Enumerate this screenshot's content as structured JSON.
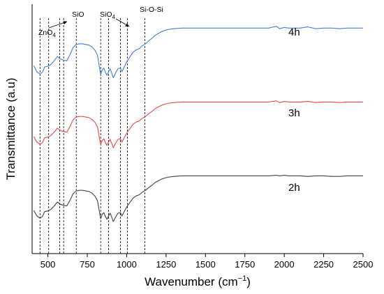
{
  "chart_data": {
    "type": "line",
    "xlabel": "Wavenumber (cm",
    "xlabel_sup": "−1",
    "xlabel_close": ")",
    "ylabel": "Transmittance (a.u)",
    "xlim": [
      400,
      2500
    ],
    "ylim": [
      0,
      1
    ],
    "x_ticks": [
      500,
      750,
      1000,
      1250,
      1500,
      1750,
      2000,
      2250,
      2500
    ],
    "y_ticks_shown": false,
    "grid": false,
    "series": [
      {
        "name": "2h",
        "color": "#404040",
        "x": [
          410,
          430,
          450,
          465,
          480,
          500,
          520,
          540,
          560,
          580,
          600,
          620,
          640,
          660,
          680,
          700,
          720,
          740,
          760,
          780,
          800,
          815,
          825,
          835,
          845,
          855,
          865,
          875,
          885,
          895,
          905,
          915,
          930,
          945,
          960,
          970,
          985,
          1000,
          1020,
          1040,
          1060,
          1080,
          1100,
          1120,
          1140,
          1160,
          1180,
          1200,
          1220,
          1240,
          1270,
          1300,
          1350,
          1400,
          1500,
          1600,
          1700,
          1800,
          1900,
          1950,
          1970,
          2000,
          2030,
          2100,
          2150,
          2200,
          2250,
          2300,
          2350,
          2400,
          2450,
          2500
        ],
        "y": [
          0.25,
          0.15,
          0.11,
          0.14,
          0.23,
          0.24,
          0.27,
          0.33,
          0.4,
          0.36,
          0.34,
          0.33,
          0.43,
          0.55,
          0.6,
          0.61,
          0.61,
          0.6,
          0.59,
          0.56,
          0.5,
          0.42,
          0.26,
          0.1,
          0.18,
          0.21,
          0.14,
          0.09,
          0.15,
          0.2,
          0.13,
          0.05,
          0.13,
          0.2,
          0.21,
          0.15,
          0.23,
          0.31,
          0.39,
          0.47,
          0.51,
          0.53,
          0.58,
          0.61,
          0.66,
          0.7,
          0.75,
          0.78,
          0.81,
          0.83,
          0.85,
          0.86,
          0.87,
          0.87,
          0.87,
          0.87,
          0.87,
          0.87,
          0.87,
          0.88,
          0.87,
          0.88,
          0.87,
          0.87,
          0.86,
          0.87,
          0.87,
          0.86,
          0.86,
          0.87,
          0.87,
          0.87
        ]
      },
      {
        "name": "3h",
        "color": "#e8474a",
        "x": [
          410,
          430,
          450,
          465,
          480,
          500,
          520,
          540,
          560,
          580,
          600,
          620,
          640,
          660,
          680,
          700,
          720,
          740,
          760,
          780,
          800,
          815,
          825,
          835,
          845,
          855,
          865,
          875,
          885,
          895,
          905,
          915,
          930,
          945,
          960,
          970,
          985,
          1000,
          1020,
          1040,
          1060,
          1080,
          1100,
          1120,
          1140,
          1160,
          1180,
          1200,
          1220,
          1240,
          1270,
          1300,
          1350,
          1400,
          1500,
          1600,
          1700,
          1800,
          1900,
          1950,
          1970,
          2000,
          2030,
          2100,
          2150,
          2200,
          2250,
          2300,
          2350,
          2400,
          2450,
          2500
        ],
        "y": [
          0.25,
          0.15,
          0.11,
          0.14,
          0.23,
          0.24,
          0.27,
          0.33,
          0.4,
          0.36,
          0.34,
          0.33,
          0.43,
          0.55,
          0.6,
          0.61,
          0.61,
          0.6,
          0.59,
          0.56,
          0.5,
          0.42,
          0.26,
          0.1,
          0.18,
          0.21,
          0.14,
          0.09,
          0.15,
          0.2,
          0.13,
          0.05,
          0.13,
          0.2,
          0.21,
          0.15,
          0.23,
          0.31,
          0.39,
          0.47,
          0.51,
          0.53,
          0.58,
          0.61,
          0.66,
          0.7,
          0.75,
          0.78,
          0.81,
          0.83,
          0.85,
          0.86,
          0.87,
          0.87,
          0.87,
          0.87,
          0.87,
          0.87,
          0.87,
          0.89,
          0.86,
          0.88,
          0.87,
          0.87,
          0.88,
          0.86,
          0.87,
          0.87,
          0.86,
          0.87,
          0.87,
          0.87
        ]
      },
      {
        "name": "4h",
        "color": "#3f80d8",
        "x": [
          410,
          430,
          450,
          465,
          480,
          500,
          520,
          540,
          560,
          580,
          600,
          620,
          640,
          660,
          680,
          700,
          720,
          740,
          760,
          780,
          800,
          815,
          825,
          835,
          845,
          855,
          865,
          875,
          885,
          895,
          905,
          915,
          930,
          945,
          960,
          970,
          985,
          1000,
          1020,
          1040,
          1060,
          1080,
          1100,
          1120,
          1140,
          1160,
          1180,
          1200,
          1220,
          1240,
          1270,
          1300,
          1350,
          1400,
          1500,
          1600,
          1700,
          1800,
          1900,
          1950,
          1970,
          2000,
          2030,
          2100,
          2150,
          2200,
          2250,
          2300,
          2350,
          2400,
          2450,
          2500
        ],
        "y": [
          0.25,
          0.15,
          0.11,
          0.14,
          0.23,
          0.24,
          0.27,
          0.33,
          0.4,
          0.36,
          0.34,
          0.33,
          0.43,
          0.55,
          0.6,
          0.61,
          0.61,
          0.6,
          0.59,
          0.56,
          0.5,
          0.42,
          0.26,
          0.1,
          0.18,
          0.21,
          0.14,
          0.09,
          0.15,
          0.2,
          0.13,
          0.05,
          0.13,
          0.2,
          0.21,
          0.15,
          0.23,
          0.31,
          0.39,
          0.47,
          0.51,
          0.53,
          0.58,
          0.61,
          0.66,
          0.7,
          0.75,
          0.78,
          0.81,
          0.83,
          0.85,
          0.86,
          0.87,
          0.87,
          0.87,
          0.87,
          0.87,
          0.87,
          0.87,
          0.9,
          0.86,
          0.88,
          0.87,
          0.87,
          0.89,
          0.86,
          0.87,
          0.87,
          0.86,
          0.87,
          0.87,
          0.87
        ]
      }
    ],
    "reference_lines_x": [
      450,
      505,
      575,
      600,
      680,
      835,
      885,
      960,
      1005,
      1115
    ],
    "annotations": [
      {
        "text": "ZnO",
        "sub": "4"
      },
      {
        "text": "SiO",
        "sub": ""
      },
      {
        "text": "SiO",
        "sub": "4"
      },
      {
        "text": "Si-O-Si",
        "sub": ""
      }
    ]
  }
}
